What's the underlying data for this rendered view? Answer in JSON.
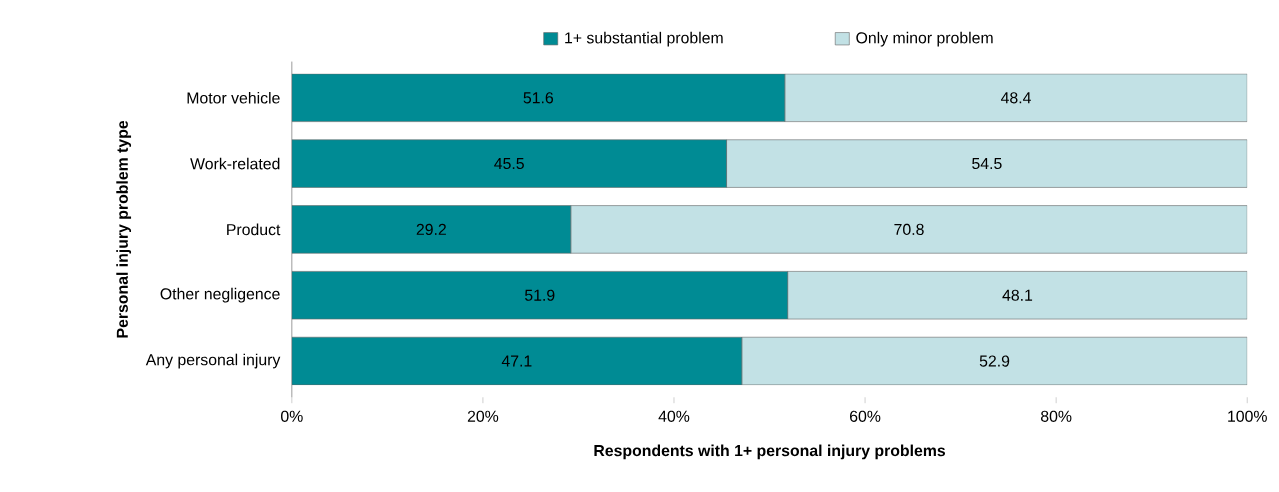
{
  "chart_data": {
    "type": "bar",
    "orientation": "horizontal",
    "stacked": true,
    "categories": [
      "Motor vehicle",
      "Work-related",
      "Product",
      "Other negligence",
      "Any personal injury"
    ],
    "series": [
      {
        "name": "1+ substantial problem",
        "color": "#008b94",
        "values": [
          51.6,
          45.5,
          29.2,
          51.9,
          47.1
        ]
      },
      {
        "name": "Only minor problem",
        "color": "#c2e1e5",
        "values": [
          48.4,
          54.5,
          70.8,
          48.1,
          52.9
        ]
      }
    ],
    "xlim": [
      0,
      100
    ],
    "xticks": [
      {
        "value": 0,
        "label": "0%"
      },
      {
        "value": 20,
        "label": "20%"
      },
      {
        "value": 40,
        "label": "40%"
      },
      {
        "value": 60,
        "label": "60%"
      },
      {
        "value": 80,
        "label": "80%"
      },
      {
        "value": 100,
        "label": "100%"
      }
    ],
    "xlabel": "Respondents with 1+ personal injury problems",
    "ylabel": "Personal injury problem type",
    "data_labels": true,
    "legend": "top",
    "grid": false
  }
}
